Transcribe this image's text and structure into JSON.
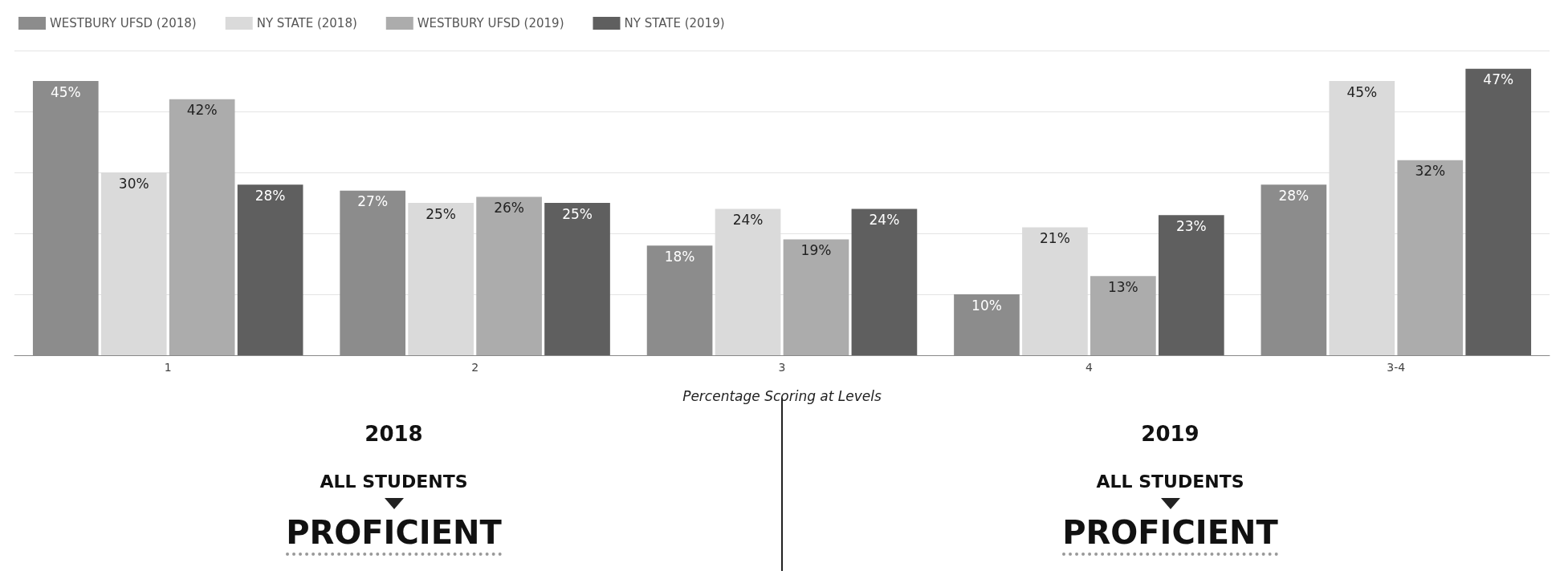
{
  "chart_data": {
    "type": "bar",
    "xlabel": "Percentage Scoring at Levels",
    "categories": [
      "1",
      "2",
      "3",
      "4",
      "3-4"
    ],
    "series": [
      {
        "name": "WESTBURY UFSD (2018)",
        "color": "#8c8c8c",
        "values": [
          45,
          27,
          18,
          10,
          28
        ],
        "value_labels": [
          "45%",
          "27%",
          "18%",
          "10%",
          "28%"
        ]
      },
      {
        "name": "NY STATE (2018)",
        "color": "#dadada",
        "values": [
          30,
          25,
          24,
          21,
          45
        ],
        "value_labels": [
          "30%",
          "25%",
          "24%",
          "21%",
          "45%"
        ]
      },
      {
        "name": "WESTBURY UFSD (2019)",
        "color": "#acacac",
        "values": [
          42,
          26,
          19,
          13,
          32
        ],
        "value_labels": [
          "42%",
          "26%",
          "19%",
          "13%",
          "32%"
        ]
      },
      {
        "name": "NY STATE (2019)",
        "color": "#5f5f5f",
        "values": [
          28,
          25,
          24,
          23,
          47
        ],
        "value_labels": [
          "28%",
          "25%",
          "24%",
          "23%",
          "47%"
        ]
      }
    ],
    "tick_labels": "x",
    "grid": "y",
    "legend": "top left",
    "annotations": [
      "2018",
      "ALL STUDENTS",
      "PROFICIENT",
      "2019",
      "ALL STUDENTS",
      "PROFICIENT"
    ]
  }
}
